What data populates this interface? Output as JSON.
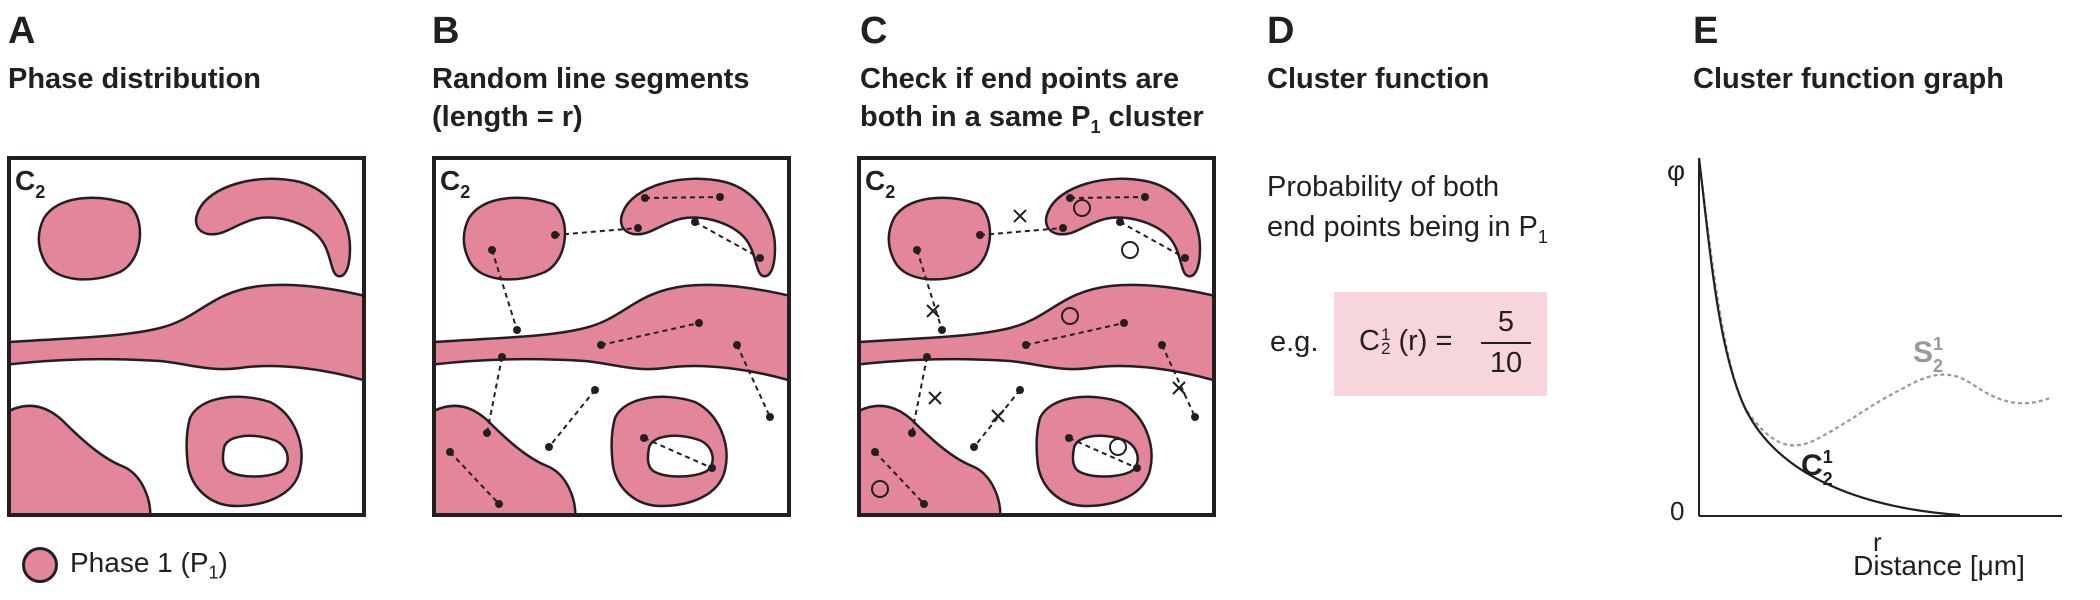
{
  "panels": [
    {
      "letter": "A",
      "title_lines": [
        "Phase distribution"
      ]
    },
    {
      "letter": "B",
      "title_lines": [
        "Random line segments",
        "(length = r)"
      ]
    },
    {
      "letter": "C",
      "title_lines": [
        "Check if end points are",
        "both in a same P",
        "1",
        " cluster"
      ]
    },
    {
      "letter": "D",
      "title_lines": [
        "Cluster function"
      ]
    },
    {
      "letter": "E",
      "title_lines": [
        "Cluster function graph"
      ]
    }
  ],
  "box_label": {
    "main": "C",
    "sub": "2"
  },
  "panel_d": {
    "line1": "Probability of both",
    "line2_main": "end points being in P",
    "line2_sub": "1",
    "eg_label": "e.g.",
    "formula_base": "C",
    "formula_sub": "2",
    "formula_sup": "1",
    "formula_arg": " (r) =",
    "numerator": "5",
    "denominator": "10"
  },
  "graph": {
    "y_label": "φ",
    "y_zero": "0",
    "x_tick": "r",
    "x_label": "Distance [μm]",
    "c_curve_label": {
      "main": "C",
      "sub": "2",
      "sup": "1"
    },
    "s_curve_label": {
      "main": "S",
      "sub": "2",
      "sup": "1"
    }
  },
  "legend": {
    "text_main": "Phase 1 (P",
    "text_sub": "1",
    "text_close": ")"
  },
  "colors": {
    "phase": "#e3869a",
    "outline": "#231f20",
    "box_fill": "#f6d5dd",
    "s_curve": "#999999"
  }
}
